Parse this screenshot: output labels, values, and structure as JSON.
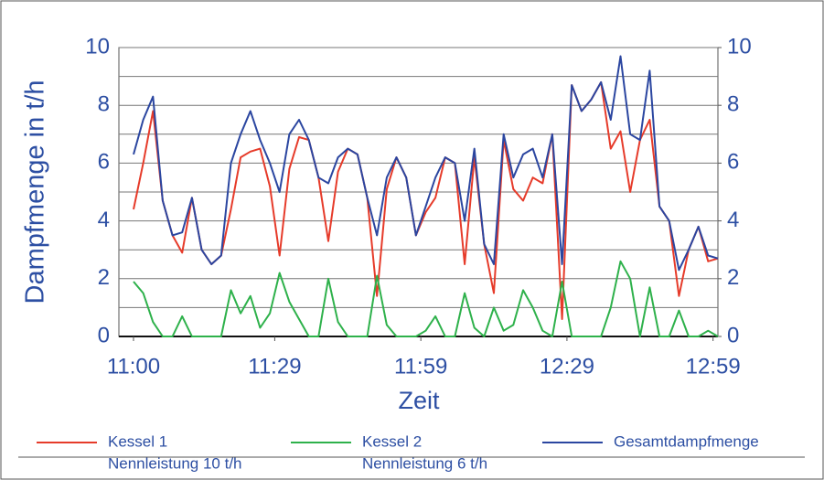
{
  "chart_data": {
    "type": "line",
    "x_label": "Zeit",
    "y_label": "Dampfmenge in t/h",
    "x": [
      0,
      2,
      4,
      6,
      8,
      10,
      12,
      14,
      16,
      18,
      20,
      22,
      24,
      26,
      28,
      30,
      32,
      34,
      36,
      38,
      40,
      42,
      44,
      46,
      48,
      50,
      52,
      54,
      56,
      58,
      60,
      62,
      64,
      66,
      68,
      70,
      72,
      74,
      76,
      78,
      80,
      82,
      84,
      86,
      88,
      90,
      92,
      94,
      96,
      98,
      100,
      102,
      104,
      106,
      108,
      110,
      112,
      114,
      116,
      118,
      120
    ],
    "xlim": [
      -3,
      120
    ],
    "xticks": [
      {
        "value": 0,
        "label": "11:00"
      },
      {
        "value": 29,
        "label": "11:29"
      },
      {
        "value": 59,
        "label": "11:59"
      },
      {
        "value": 89,
        "label": "12:29"
      },
      {
        "value": 119,
        "label": "12:59"
      }
    ],
    "ylim": [
      0,
      10
    ],
    "yticks": [
      0,
      2,
      4,
      6,
      8,
      10
    ],
    "y2lim": [
      0,
      10
    ],
    "y2ticks": [
      0,
      2,
      4,
      6,
      8,
      10
    ],
    "minor_grid": [
      1,
      3,
      5,
      7,
      9
    ],
    "grid": true,
    "series": [
      {
        "name": "Kessel 1",
        "legend_sublabel": "Nennleistung 10 t/h",
        "color": "#e63b2a",
        "values": [
          4.4,
          6,
          7.8,
          4.7,
          3.5,
          2.9,
          4.8,
          3,
          2.5,
          2.8,
          4.4,
          6.2,
          6.4,
          6.5,
          5.2,
          2.8,
          5.8,
          6.9,
          6.8,
          5.5,
          3.3,
          5.7,
          6.5,
          6.3,
          4.8,
          1.4,
          5.1,
          6.2,
          5.5,
          3.5,
          4.3,
          4.8,
          6.2,
          6,
          2.5,
          6.2,
          3.2,
          1.5,
          6.8,
          5.1,
          4.7,
          5.5,
          5.3,
          7,
          0.6,
          8.7,
          7.8,
          8.2,
          8.8,
          6.5,
          7.1,
          5,
          6.8,
          7.5,
          4.5,
          4,
          1.4,
          3,
          3.8,
          2.6,
          2.7
        ]
      },
      {
        "name": "Kessel 2",
        "legend_sublabel": "Nennleistung 6 t/h",
        "color": "#2eb14b",
        "values": [
          1.9,
          1.5,
          0.5,
          0,
          0,
          0.7,
          0,
          0,
          0,
          0,
          1.6,
          0.8,
          1.4,
          0.3,
          0.8,
          2.2,
          1.2,
          0.6,
          0,
          0,
          2,
          0.5,
          0,
          0,
          0,
          2.1,
          0.4,
          0,
          0,
          0,
          0.2,
          0.7,
          0,
          0,
          1.5,
          0.3,
          0,
          1,
          0.2,
          0.4,
          1.6,
          1,
          0.2,
          0,
          1.9,
          0,
          0,
          0,
          0,
          1,
          2.6,
          2,
          0,
          1.7,
          0,
          0,
          0.9,
          0,
          0,
          0.2,
          0
        ]
      },
      {
        "name": "Gesamtdampfmenge",
        "color": "#2b46a0",
        "values": [
          6.3,
          7.5,
          8.3,
          4.7,
          3.5,
          3.6,
          4.8,
          3,
          2.5,
          2.8,
          6,
          7,
          7.8,
          6.8,
          6,
          5,
          7,
          7.5,
          6.8,
          5.5,
          5.3,
          6.2,
          6.5,
          6.3,
          4.8,
          3.5,
          5.5,
          6.2,
          5.5,
          3.5,
          4.5,
          5.5,
          6.2,
          6,
          4,
          6.5,
          3.2,
          2.5,
          7,
          5.5,
          6.3,
          6.5,
          5.5,
          7,
          2.5,
          8.7,
          7.8,
          8.2,
          8.8,
          7.5,
          9.7,
          7,
          6.8,
          9.2,
          4.5,
          4,
          2.3,
          3,
          3.8,
          2.8,
          2.7
        ]
      }
    ]
  }
}
